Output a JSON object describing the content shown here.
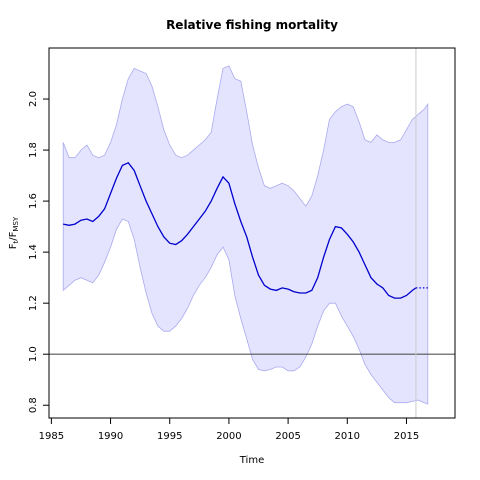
{
  "chart_data": {
    "type": "line",
    "title": "Relative fishing mortality",
    "xlabel": "Time",
    "ylabel": "Ft/FMSY",
    "xlim": [
      1984.8,
      2019.1
    ],
    "ylim": [
      0.75,
      2.2
    ],
    "xticks": [
      1985,
      1990,
      1995,
      2000,
      2005,
      2010,
      2015
    ],
    "yticks": [
      0.8,
      1.0,
      1.2,
      1.4,
      1.6,
      1.8,
      2.0
    ],
    "reference_line": 1.0,
    "vertical_marker": 2015.8,
    "colors": {
      "estimate": "#0000cc",
      "band_fill": "#e4e4ff",
      "band_edge": "#aaaaee",
      "reference": "#555555",
      "marker": "#cccccc"
    },
    "estimate": {
      "x": [
        1986.0,
        1986.5,
        1987.0,
        1987.5,
        1988.0,
        1988.5,
        1989.0,
        1989.5,
        1990.0,
        1990.5,
        1991.0,
        1991.5,
        1992.0,
        1992.5,
        1993.0,
        1993.5,
        1994.0,
        1994.5,
        1995.0,
        1995.5,
        1996.0,
        1996.5,
        1997.0,
        1997.5,
        1998.0,
        1998.5,
        1999.0,
        1999.5,
        2000.0,
        2000.5,
        2001.0,
        2001.5,
        2002.0,
        2002.5,
        2003.0,
        2003.5,
        2004.0,
        2004.5,
        2005.0,
        2005.5,
        2006.0,
        2006.5,
        2007.0,
        2007.5,
        2008.0,
        2008.5,
        2009.0,
        2009.5,
        2010.0,
        2010.5,
        2011.0,
        2011.5,
        2012.0,
        2012.5,
        2013.0,
        2013.5,
        2014.0,
        2014.5,
        2015.0,
        2015.5,
        2015.8
      ],
      "y": [
        1.51,
        1.505,
        1.51,
        1.525,
        1.53,
        1.52,
        1.54,
        1.57,
        1.63,
        1.69,
        1.74,
        1.75,
        1.72,
        1.66,
        1.6,
        1.55,
        1.5,
        1.46,
        1.435,
        1.43,
        1.445,
        1.47,
        1.5,
        1.53,
        1.56,
        1.6,
        1.65,
        1.695,
        1.67,
        1.59,
        1.52,
        1.46,
        1.38,
        1.31,
        1.27,
        1.255,
        1.25,
        1.26,
        1.255,
        1.245,
        1.24,
        1.24,
        1.25,
        1.3,
        1.38,
        1.45,
        1.5,
        1.495,
        1.47,
        1.44,
        1.4,
        1.35,
        1.3,
        1.275,
        1.26,
        1.23,
        1.22,
        1.22,
        1.23,
        1.25,
        1.26
      ]
    },
    "projection": {
      "x": [
        2015.8,
        2016.8
      ],
      "y": [
        1.26,
        1.26
      ]
    },
    "band": {
      "x": [
        1986.0,
        1986.5,
        1987.0,
        1987.5,
        1988.0,
        1988.5,
        1989.0,
        1989.5,
        1990.0,
        1990.5,
        1991.0,
        1991.5,
        1992.0,
        1992.5,
        1993.0,
        1993.5,
        1994.0,
        1994.5,
        1995.0,
        1995.5,
        1996.0,
        1996.5,
        1997.0,
        1997.5,
        1998.0,
        1998.5,
        1999.0,
        1999.5,
        2000.0,
        2000.5,
        2001.0,
        2001.5,
        2002.0,
        2002.5,
        2003.0,
        2003.5,
        2004.0,
        2004.5,
        2005.0,
        2005.5,
        2006.0,
        2006.5,
        2007.0,
        2007.5,
        2008.0,
        2008.5,
        2009.0,
        2009.5,
        2010.0,
        2010.5,
        2011.0,
        2011.5,
        2012.0,
        2012.5,
        2013.0,
        2013.5,
        2014.0,
        2014.5,
        2015.0,
        2015.5,
        2016.0,
        2016.5,
        2016.8
      ],
      "upper": [
        1.83,
        1.77,
        1.77,
        1.8,
        1.82,
        1.78,
        1.77,
        1.78,
        1.83,
        1.9,
        2.0,
        2.08,
        2.12,
        2.11,
        2.1,
        2.05,
        1.97,
        1.88,
        1.82,
        1.78,
        1.77,
        1.78,
        1.8,
        1.82,
        1.84,
        1.87,
        2.0,
        2.12,
        2.13,
        2.08,
        2.07,
        1.95,
        1.82,
        1.73,
        1.66,
        1.65,
        1.66,
        1.67,
        1.66,
        1.64,
        1.61,
        1.58,
        1.62,
        1.7,
        1.8,
        1.92,
        1.95,
        1.97,
        1.98,
        1.97,
        1.91,
        1.84,
        1.83,
        1.86,
        1.84,
        1.83,
        1.83,
        1.84,
        1.88,
        1.92,
        1.94,
        1.96,
        1.98
      ],
      "lower": [
        1.25,
        1.27,
        1.29,
        1.3,
        1.29,
        1.28,
        1.31,
        1.36,
        1.42,
        1.49,
        1.53,
        1.52,
        1.45,
        1.34,
        1.24,
        1.16,
        1.11,
        1.09,
        1.09,
        1.11,
        1.14,
        1.18,
        1.23,
        1.27,
        1.3,
        1.34,
        1.39,
        1.42,
        1.37,
        1.23,
        1.14,
        1.06,
        0.98,
        0.94,
        0.935,
        0.94,
        0.95,
        0.95,
        0.935,
        0.935,
        0.95,
        0.99,
        1.04,
        1.11,
        1.17,
        1.2,
        1.2,
        1.15,
        1.11,
        1.07,
        1.02,
        0.96,
        0.92,
        0.89,
        0.86,
        0.83,
        0.81,
        0.81,
        0.81,
        0.815,
        0.82,
        0.81,
        0.805
      ]
    }
  }
}
